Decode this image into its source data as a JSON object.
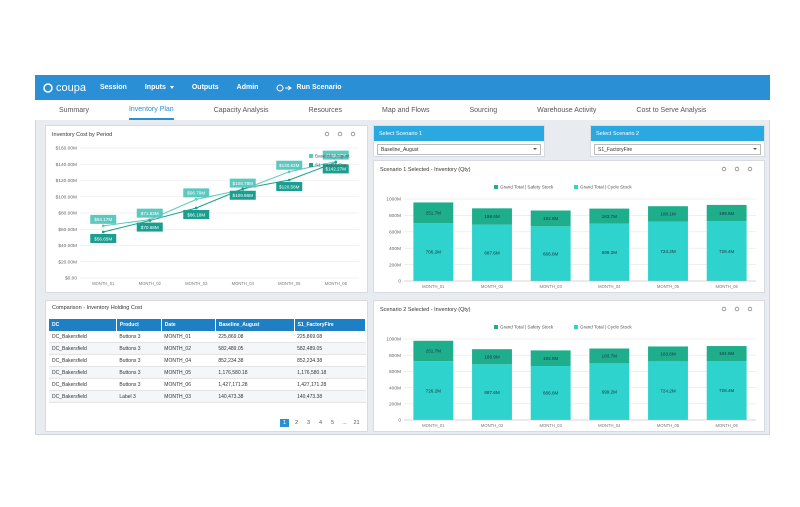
{
  "nav": {
    "logo": "coupa",
    "items": [
      "Session",
      "Inputs",
      "Outputs",
      "Admin"
    ],
    "run": "Run Scenario"
  },
  "tabs": {
    "items": [
      "Summary",
      "Inventory Plan",
      "Capacity Analysis",
      "Resources",
      "Map and Flows",
      "Sourcing",
      "Warehouse Activity",
      "Cost to Serve Analysis"
    ],
    "active": 1
  },
  "selectors": [
    {
      "title": "Select Scenario 1",
      "value": "Baseline_August"
    },
    {
      "title": "Select Scenario 2",
      "value": "S1_FactoryFire"
    }
  ],
  "table": {
    "title": "Comparison - Inventory Holding Cost",
    "columns": [
      "DC",
      "Product",
      "Date",
      "Baseline_August",
      "S1_FactoryFire"
    ],
    "rows": [
      [
        "DC_Bakersfield",
        "Buttons 3",
        "MONTH_01",
        "225,869.08",
        "225,869.08"
      ],
      [
        "DC_Bakersfield",
        "Buttons 3",
        "MONTH_02",
        "582,489.05",
        "582,489.05"
      ],
      [
        "DC_Bakersfield",
        "Buttons 3",
        "MONTH_04",
        "852,234.38",
        "852,234.38"
      ],
      [
        "DC_Bakersfield",
        "Buttons 3",
        "MONTH_05",
        "1,176,580.18",
        "1,176,580.18"
      ],
      [
        "DC_Bakersfield",
        "Buttons 3",
        "MONTH_06",
        "1,427,171.28",
        "1,427,171.28"
      ],
      [
        "DC_Bakersfield",
        "Label 3",
        "MONTH_03",
        "140,473.38",
        "140,473.38"
      ]
    ],
    "pages": [
      "1",
      "2",
      "3",
      "4",
      "5",
      "...",
      "21"
    ],
    "current_index": 0
  },
  "chart_data": [
    {
      "type": "line",
      "title": "Inventory Cost by Period",
      "categories": [
        "MONTH_01",
        "MONTH_02",
        "MONTH_03",
        "MONTH_04",
        "MONTH_05",
        "MONTH_06"
      ],
      "series": [
        {
          "name": "Baseline_August",
          "color": "#5cc9c0",
          "values": [
            64170000,
            71830000,
            96790000,
            108780000,
            130820000,
            143270000
          ],
          "value_labels": [
            "$64.17M",
            "$71.83M",
            "$96.79M",
            "$108.78M",
            "$130.82M",
            "$143.27M"
          ]
        },
        {
          "name": "S1_FactoryFire",
          "color": "#1a9e8f",
          "values": [
            56650000,
            70680000,
            86180000,
            109860000,
            120580000,
            142270000
          ],
          "value_labels": [
            "$56.65M",
            "$70.68M",
            "$86.18M",
            "$109.86M",
            "$120.58M",
            "$142.27M"
          ]
        }
      ],
      "ylim": [
        0,
        160000000
      ],
      "yticks": [
        {
          "value": 0,
          "label": "$0.00"
        },
        {
          "value": 20000000,
          "label": "$20.00M"
        },
        {
          "value": 40000000,
          "label": "$40.00M"
        },
        {
          "value": 60000000,
          "label": "$60.00M"
        },
        {
          "value": 80000000,
          "label": "$80.00M"
        },
        {
          "value": 100000000,
          "label": "$100.00M"
        },
        {
          "value": 120000000,
          "label": "$120.00M"
        },
        {
          "value": 140000000,
          "label": "$140.00M"
        },
        {
          "value": 160000000,
          "label": "$160.00M"
        }
      ],
      "grid": true
    },
    {
      "type": "stacked_bar",
      "title": "Scenario 1 Selected - Inventory (Qty)",
      "categories": [
        "MONTH_01",
        "MONTH_02",
        "MONTH_03",
        "MONTH_04",
        "MONTH_05",
        "MONTH_06"
      ],
      "series": [
        {
          "name": "Grand Total | Safety Stock",
          "color": "#1fae8b",
          "values": [
            251.7,
            198.6,
            192.8,
            183.7,
            188.1,
            199.6
          ],
          "value_labels": [
            "251.7M",
            "198.6M",
            "192.8M",
            "183.7M",
            "188.1M",
            "199.6M"
          ]
        },
        {
          "name": "Grand Total | Cycle Stock",
          "color": "#2dd3cc",
          "values": [
            706.2,
            687.6,
            666.8,
            699.2,
            724.2,
            728.4
          ],
          "value_labels": [
            "706.2M",
            "687.6M",
            "666.8M",
            "699.2M",
            "724.2M",
            "728.4M"
          ]
        }
      ],
      "ylim": [
        0,
        1000
      ],
      "yticks": [
        0,
        {
          "value": 200,
          "label": "200M"
        },
        {
          "value": 400,
          "label": "400M"
        },
        {
          "value": 600,
          "label": "600M"
        },
        {
          "value": 800,
          "label": "800M"
        },
        {
          "value": 1000,
          "label": "1000M"
        }
      ],
      "grid": true
    },
    {
      "type": "stacked_bar",
      "title": "Scenario 2 Selected - Inventory (Qty)",
      "categories": [
        "MONTH_01",
        "MONTH_02",
        "MONTH_03",
        "MONTH_04",
        "MONTH_05",
        "MONTH_06"
      ],
      "series": [
        {
          "name": "Grand Total | Safety Stock",
          "color": "#1fae8b",
          "values": [
            251.7,
            186.9,
            192.8,
            183.7,
            183.6,
            184.6
          ],
          "value_labels": [
            "251.7M",
            "186.9M",
            "192.8M",
            "183.7M",
            "183.6M",
            "184.6M"
          ]
        },
        {
          "name": "Grand Total | Cycle Stock",
          "color": "#2dd3cc",
          "values": [
            726.2,
            687.6,
            666.8,
            699.2,
            724.2,
            728.4
          ],
          "value_labels": [
            "726.2M",
            "687.6M",
            "666.8M",
            "699.2M",
            "724.2M",
            "728.4M"
          ]
        }
      ],
      "ylim": [
        0,
        1000
      ],
      "yticks": [
        0,
        {
          "value": 200,
          "label": "200M"
        },
        {
          "value": 400,
          "label": "400M"
        },
        {
          "value": 600,
          "label": "600M"
        },
        {
          "value": 800,
          "label": "800M"
        },
        {
          "value": 1000,
          "label": "1000M"
        }
      ],
      "grid": true
    }
  ]
}
